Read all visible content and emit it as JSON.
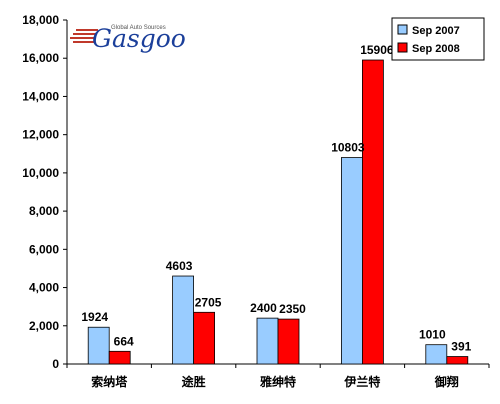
{
  "chart_data": {
    "type": "bar",
    "categories": [
      "索纳塔",
      "途胜",
      "雅绅特",
      "伊兰特",
      "御翔"
    ],
    "series": [
      {
        "name": "Sep 2007",
        "color": "#99ccff",
        "values": [
          1924,
          4603,
          2400,
          10803,
          1010
        ]
      },
      {
        "name": "Sep 2008",
        "color": "#ff0000",
        "values": [
          664,
          2705,
          2350,
          15906,
          391
        ]
      }
    ],
    "ylim": [
      0,
      18000
    ],
    "yticks": [
      "0",
      "2,000",
      "4,000",
      "6,000",
      "8,000",
      "10,000",
      "12,000",
      "14,000",
      "16,000",
      "18,000"
    ],
    "ytick_values": [
      0,
      2000,
      4000,
      6000,
      8000,
      10000,
      12000,
      14000,
      16000,
      18000
    ],
    "legend_position": "top-right",
    "grid": false
  },
  "logo": {
    "name": "Gasgoo",
    "tagline": "Global Auto Sources"
  }
}
